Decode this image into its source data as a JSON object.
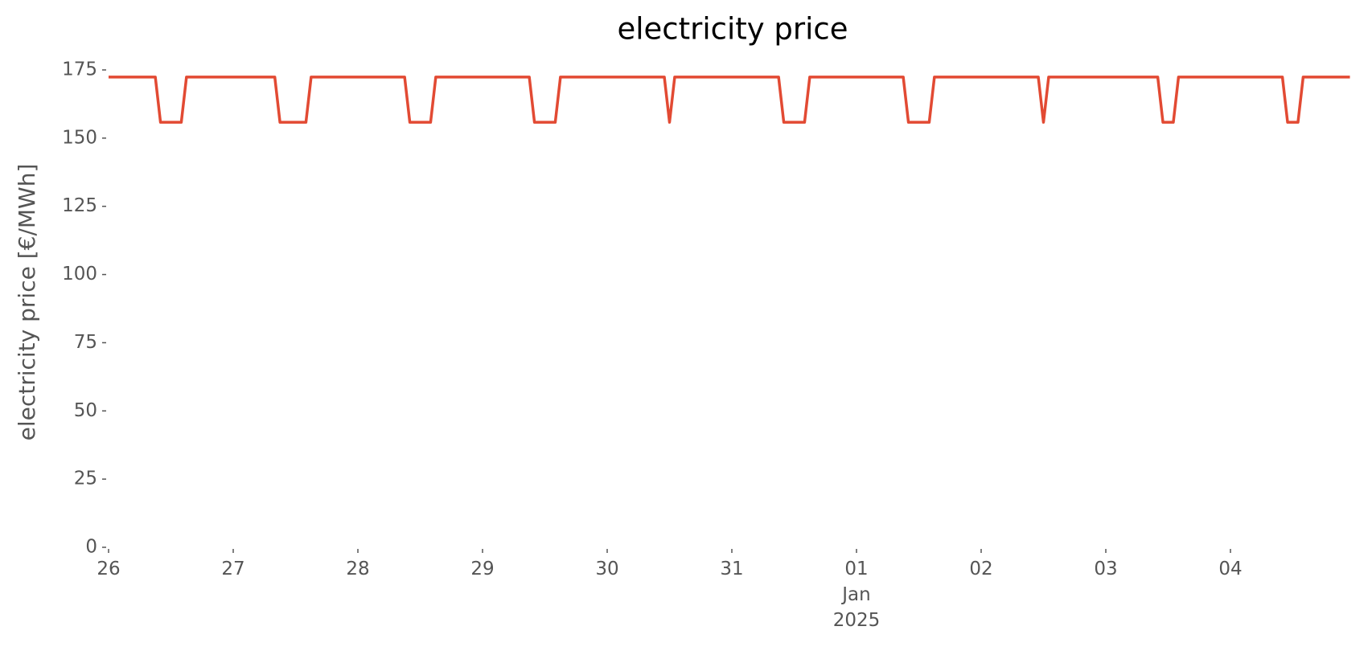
{
  "chart_data": {
    "type": "line",
    "title": "electricity price",
    "ylabel": "electricity price [€/MWh]",
    "x": [
      0,
      9,
      10,
      14,
      15,
      32,
      33,
      38,
      39,
      57,
      58,
      62,
      63,
      81,
      82,
      86,
      87,
      107,
      108,
      109,
      129,
      130,
      134,
      135,
      153,
      154,
      158,
      159,
      179,
      180,
      181,
      202,
      203,
      205,
      206,
      226,
      227,
      229,
      230,
      239
    ],
    "series": [
      {
        "name": "electricity price",
        "color": "#e24a33",
        "values": [
          172.4,
          172.4,
          155.8,
          155.8,
          172.4,
          172.4,
          155.8,
          155.8,
          172.4,
          172.4,
          155.8,
          155.8,
          172.4,
          172.4,
          155.8,
          155.8,
          172.4,
          172.4,
          155.8,
          172.4,
          172.4,
          155.8,
          155.8,
          172.4,
          172.4,
          155.8,
          155.8,
          172.4,
          172.4,
          155.8,
          172.4,
          172.4,
          155.8,
          155.8,
          172.4,
          172.4,
          155.8,
          155.8,
          172.4,
          172.4
        ]
      }
    ],
    "xlim": [
      0,
      240
    ],
    "xticks": [
      {
        "value": 0,
        "label": "26"
      },
      {
        "value": 24,
        "label": "27"
      },
      {
        "value": 48,
        "label": "28"
      },
      {
        "value": 72,
        "label": "29"
      },
      {
        "value": 96,
        "label": "30"
      },
      {
        "value": 120,
        "label": "31"
      },
      {
        "value": 144,
        "label": "01\nJan\n2025"
      },
      {
        "value": 168,
        "label": "02"
      },
      {
        "value": 192,
        "label": "03"
      },
      {
        "value": 216,
        "label": "04"
      }
    ],
    "ylim": [
      0,
      175
    ],
    "yticks": [
      0,
      25,
      50,
      75,
      100,
      125,
      150,
      175
    ]
  }
}
